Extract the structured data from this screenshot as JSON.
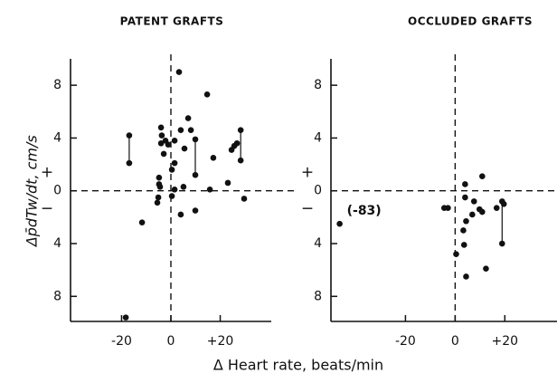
{
  "xlabel": "Δ Heart rate, beats/min",
  "chart_data": [
    {
      "type": "scatter",
      "title": "PATENT GRAFTS",
      "ylabel": "Δp̄dTw/dt, cm/s",
      "signs": [
        "+",
        "−"
      ],
      "xlim": [
        -40.7,
        40.7
      ],
      "ylim": [
        -9.9,
        10
      ],
      "xticks": [
        -20,
        0,
        {
          "value": 20,
          "label": "+20"
        }
      ],
      "yticks": [
        8,
        4,
        0,
        {
          "value": -4,
          "label": "4"
        },
        {
          "value": -8,
          "label": "8"
        }
      ],
      "color": "#111111",
      "x": [
        -11.7,
        -5.5,
        -5.1,
        -4.8,
        -4.8,
        -4.4,
        -4.0,
        -3.7,
        -4.0,
        -2.2,
        -1.1,
        -2.9,
        1.5,
        1.5,
        0.4,
        1.5,
        0.4,
        3.3,
        4.0,
        4.0,
        5.1,
        5.5,
        7.0,
        8.1,
        9.9,
        14.7,
        15.8,
        17.2,
        23.1,
        24.6,
        25.7,
        26.8,
        29.7,
        -18.3
      ],
      "y": [
        -2.4,
        -0.9,
        -0.5,
        1.0,
        0.5,
        0.3,
        4.8,
        4.2,
        3.6,
        3.8,
        3.5,
        2.8,
        3.8,
        2.1,
        1.6,
        0.1,
        -0.4,
        9.0,
        4.6,
        -1.8,
        0.3,
        3.2,
        5.5,
        4.6,
        -1.5,
        7.3,
        0.1,
        2.5,
        0.6,
        3.1,
        3.4,
        3.6,
        -0.6,
        -9.6
      ],
      "pairs": [
        {
          "x": [
            -16.9,
            -16.9
          ],
          "y": [
            4.2,
            2.1
          ]
        },
        {
          "x": [
            9.9,
            9.9
          ],
          "y": [
            3.9,
            1.2
          ]
        },
        {
          "x": [
            28.3,
            28.3
          ],
          "y": [
            4.6,
            2.3
          ]
        }
      ]
    },
    {
      "type": "scatter",
      "title": "OCCLUDED GRAFTS",
      "signs": [
        "+",
        "−"
      ],
      "annotation": "(-83)",
      "xlim": [
        -50,
        41
      ],
      "ylim": [
        -9.9,
        10
      ],
      "xticks": [
        -20,
        0,
        {
          "value": 20,
          "label": "+20"
        }
      ],
      "yticks": [
        8,
        4,
        0,
        {
          "value": -4,
          "label": "4"
        },
        {
          "value": -8,
          "label": "8"
        }
      ],
      "color": "#111111",
      "x": [
        -46.5,
        -4.4,
        -2.9,
        0.4,
        3.3,
        4.0,
        4.0,
        4.4,
        3.6,
        4.4,
        6.9,
        7.6,
        9.8,
        10.9,
        10.9,
        12.4,
        16.7,
        19.6
      ],
      "y": [
        -2.5,
        -1.3,
        -1.3,
        -4.8,
        -3.0,
        0.5,
        -0.5,
        -2.3,
        -4.1,
        -6.5,
        -1.8,
        -0.8,
        -1.4,
        1.1,
        -1.6,
        -5.9,
        -1.3,
        -1.0
      ],
      "pairs": [
        {
          "x": [
            18.9,
            18.9
          ],
          "y": [
            -0.8,
            -4.0
          ]
        }
      ]
    }
  ]
}
